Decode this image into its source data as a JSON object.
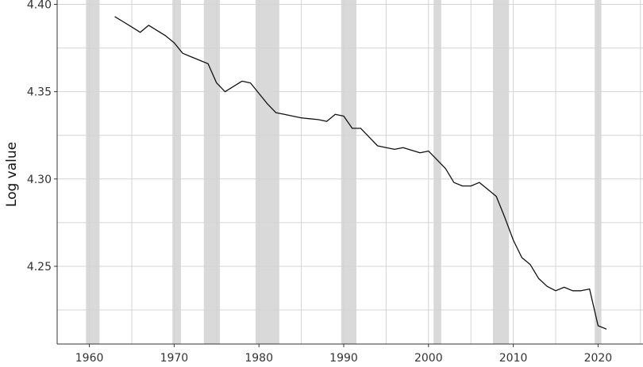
{
  "chart_data": {
    "type": "line",
    "title": "",
    "xlabel": "",
    "ylabel": "Log value",
    "xlim": [
      1956.2,
      2025.3
    ],
    "ylim": [
      4.2055,
      4.4025
    ],
    "grid": true,
    "x_ticks": [
      1960,
      1970,
      1980,
      1990,
      2000,
      2010,
      2020
    ],
    "x_tick_labels": [
      "1960",
      "1970",
      "1980",
      "1990",
      "2000",
      "2010",
      "2020"
    ],
    "y_ticks": [
      4.25,
      4.3,
      4.35,
      4.4
    ],
    "y_tick_labels": [
      "4.25",
      "4.30",
      "4.35",
      "4.40"
    ],
    "shaded_periods": [
      [
        1959.6,
        1961.2
      ],
      [
        1969.8,
        1970.8
      ],
      [
        1973.5,
        1975.4
      ],
      [
        1979.6,
        1982.4
      ],
      [
        1989.7,
        1991.5
      ],
      [
        2000.6,
        2001.5
      ],
      [
        2007.6,
        2009.5
      ],
      [
        2019.6,
        2020.4
      ]
    ],
    "series": [
      {
        "x": [
          1963,
          1964,
          1965,
          1966,
          1967,
          1968,
          1969,
          1970,
          1971,
          1972,
          1973,
          1974,
          1975,
          1976,
          1977,
          1978,
          1979,
          1980,
          1981,
          1982,
          1983,
          1984,
          1985,
          1986,
          1987,
          1988,
          1989,
          1990,
          1991,
          1992,
          1993,
          1994,
          1995,
          1996,
          1997,
          1998,
          1999,
          2000,
          2001,
          2002,
          2003,
          2004,
          2005,
          2006,
          2007,
          2008,
          2009,
          2010,
          2011,
          2012,
          2013,
          2014,
          2015,
          2016,
          2017,
          2018,
          2019,
          2020,
          2021
        ],
        "values": [
          4.393,
          4.39,
          4.387,
          4.384,
          4.388,
          4.385,
          4.382,
          4.378,
          4.372,
          4.37,
          4.368,
          4.366,
          4.355,
          4.35,
          4.353,
          4.356,
          4.355,
          4.349,
          4.343,
          4.338,
          4.337,
          4.336,
          4.335,
          4.3345,
          4.334,
          4.333,
          4.337,
          4.336,
          4.329,
          4.329,
          4.324,
          4.319,
          4.318,
          4.317,
          4.318,
          4.3165,
          4.315,
          4.316,
          4.311,
          4.306,
          4.298,
          4.296,
          4.296,
          4.298,
          4.294,
          4.29,
          4.278,
          4.265,
          4.255,
          4.251,
          4.243,
          4.2385,
          4.236,
          4.238,
          4.236,
          4.236,
          4.237,
          4.216,
          4.214
        ]
      }
    ]
  },
  "colors": {
    "line": "#111111",
    "shading": "#d9d9d9",
    "grid": "#d4d4d4",
    "axis": "#333333"
  }
}
